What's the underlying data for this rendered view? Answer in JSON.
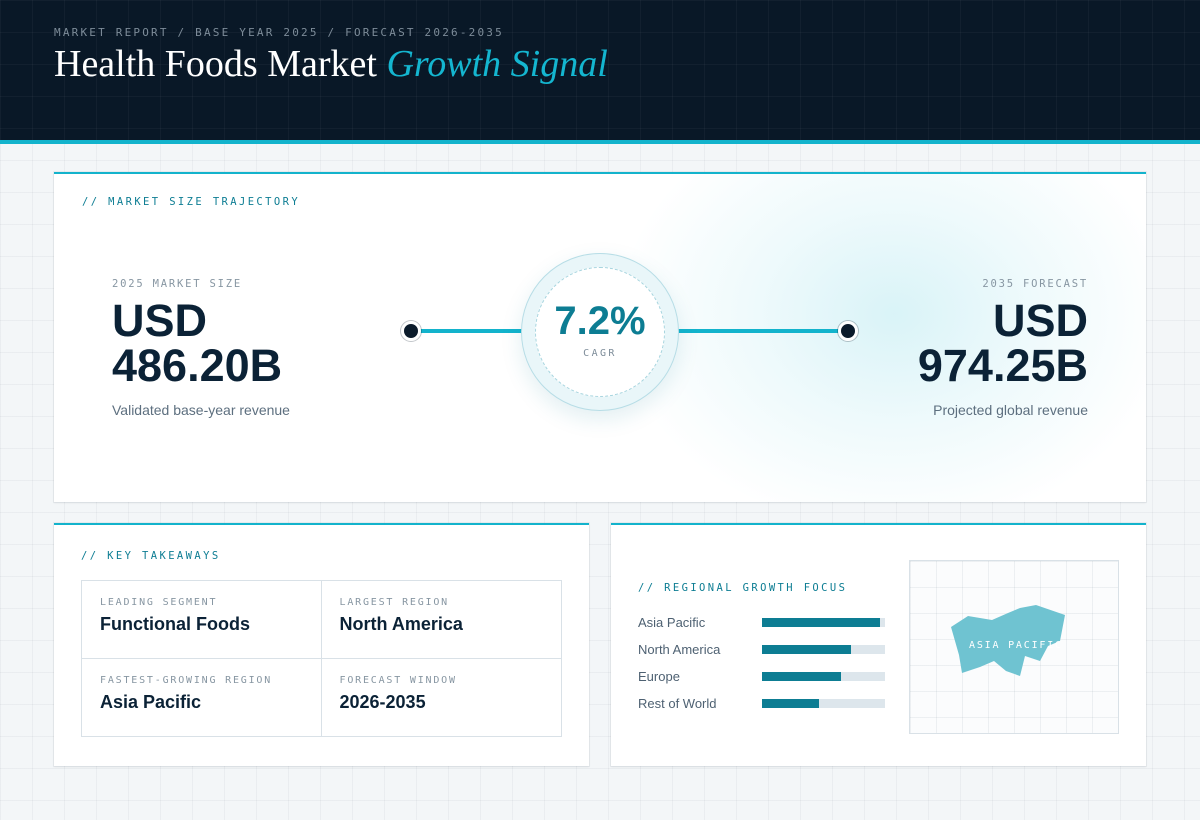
{
  "header": {
    "breadcrumb": "MARKET REPORT / BASE YEAR 2025 / FORECAST 2026-2035",
    "title_main": "Health Foods Market",
    "title_accent": "Growth Signal"
  },
  "trajectory": {
    "section_label": "// MARKET SIZE TRAJECTORY",
    "base": {
      "caption": "2025 MARKET SIZE",
      "currency": "USD",
      "amount": "486.20B",
      "subtitle": "Validated base-year revenue"
    },
    "forecast": {
      "caption": "2035 FORECAST",
      "currency": "USD",
      "amount": "974.25B",
      "subtitle": "Projected global revenue"
    },
    "cagr": {
      "value": "7.2%",
      "label": "CAGR"
    }
  },
  "takeaways": {
    "section_label": "// KEY TAKEAWAYS",
    "items": [
      {
        "caption": "LEADING SEGMENT",
        "value": "Functional Foods"
      },
      {
        "caption": "LARGEST REGION",
        "value": "North America"
      },
      {
        "caption": "FASTEST-GROWING REGION",
        "value": "Asia Pacific"
      },
      {
        "caption": "FORECAST WINDOW",
        "value": "2026-2035"
      }
    ]
  },
  "regional": {
    "section_label": "// REGIONAL GROWTH FOCUS",
    "rows": [
      {
        "label": "Asia Pacific",
        "level": 0.96
      },
      {
        "label": "North America",
        "level": 0.72
      },
      {
        "label": "Europe",
        "level": 0.64
      },
      {
        "label": "Rest of World",
        "level": 0.46
      }
    ],
    "map": {
      "highlight_label": "ASIA PACIFIC",
      "fill_color": "#6fc3d1"
    }
  },
  "colors": {
    "accent": "#13b3cc",
    "accent_dark": "#0d7d93",
    "header_bg": "#091827",
    "ink": "#0b2236"
  }
}
